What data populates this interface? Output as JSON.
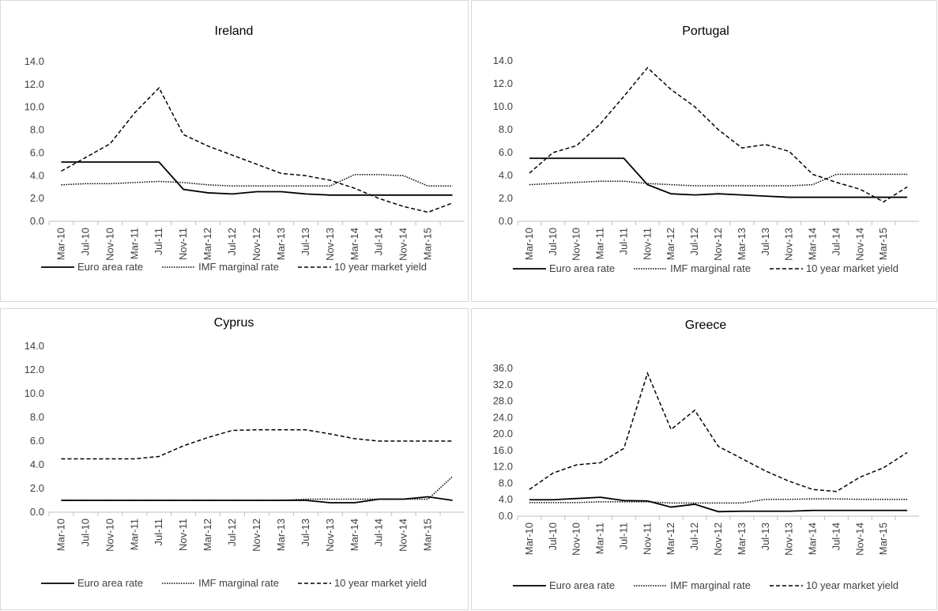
{
  "chart_data": [
    {
      "type": "line",
      "title": "Ireland",
      "categories": [
        "Mar-10",
        "Jul-10",
        "Nov-10",
        "Mar-11",
        "Jul-11",
        "Nov-11",
        "Mar-12",
        "Jul-12",
        "Nov-12",
        "Mar-13",
        "Jul-13",
        "Nov-13",
        "Mar-14",
        "Jul-14",
        "Nov-14",
        "Mar-15",
        null
      ],
      "ylim": [
        0,
        14
      ],
      "yticks": [
        {
          "value": 0,
          "label": "0.0"
        },
        {
          "value": 2,
          "label": "2.0"
        },
        {
          "value": 4,
          "label": "4.0"
        },
        {
          "value": 6,
          "label": "6.0"
        },
        {
          "value": 8,
          "label": "8.0"
        },
        {
          "value": 10,
          "label": "10.0"
        },
        {
          "value": 12,
          "label": "12.0"
        },
        {
          "value": 14,
          "label": "14.0"
        }
      ],
      "series": [
        {
          "name": "Euro area rate",
          "color": "#000000",
          "line_style": "solid",
          "values": [
            5.2,
            5.2,
            5.2,
            5.2,
            5.2,
            2.8,
            2.5,
            2.4,
            2.6,
            2.6,
            2.4,
            2.3,
            2.3,
            2.3,
            2.3,
            2.3,
            2.3
          ]
        },
        {
          "name": "IMF marginal rate",
          "color": "#000000",
          "line_style": "dotted",
          "values": [
            3.2,
            3.3,
            3.3,
            3.4,
            3.5,
            3.4,
            3.2,
            3.1,
            3.1,
            3.1,
            3.1,
            3.1,
            4.1,
            4.1,
            4.0,
            3.1,
            3.1
          ]
        },
        {
          "name": "10 year market yield",
          "color": "#000000",
          "line_style": "dashed",
          "values": [
            4.4,
            5.6,
            6.8,
            9.5,
            11.7,
            7.6,
            6.6,
            5.8,
            5.0,
            4.2,
            4.0,
            3.6,
            2.9,
            2.0,
            1.3,
            0.8,
            1.6
          ]
        }
      ]
    },
    {
      "type": "line",
      "title": "Portugal",
      "categories": [
        "Mar-10",
        "Jul-10",
        "Nov-10",
        "Mar-11",
        "Jul-11",
        "Nov-11",
        "Mar-12",
        "Jul-12",
        "Nov-12",
        "Mar-13",
        "Jul-13",
        "Nov-13",
        "Mar-14",
        "Jul-14",
        "Nov-14",
        "Mar-15",
        null
      ],
      "ylim": [
        0,
        14
      ],
      "yticks": [
        {
          "value": 0,
          "label": "0.0"
        },
        {
          "value": 2,
          "label": "2.0"
        },
        {
          "value": 4,
          "label": "4.0"
        },
        {
          "value": 6,
          "label": "6.0"
        },
        {
          "value": 8,
          "label": "8.0"
        },
        {
          "value": 10,
          "label": "10.0"
        },
        {
          "value": 12,
          "label": "12.0"
        },
        {
          "value": 14,
          "label": "14.0"
        }
      ],
      "series": [
        {
          "name": "Euro area rate",
          "color": "#000000",
          "line_style": "solid",
          "values": [
            5.5,
            5.5,
            5.5,
            5.5,
            5.5,
            3.2,
            2.4,
            2.3,
            2.4,
            2.3,
            2.2,
            2.1,
            2.1,
            2.1,
            2.1,
            2.1,
            2.1
          ]
        },
        {
          "name": "IMF marginal rate",
          "color": "#000000",
          "line_style": "dotted",
          "values": [
            3.2,
            3.3,
            3.4,
            3.5,
            3.5,
            3.3,
            3.2,
            3.1,
            3.1,
            3.1,
            3.1,
            3.1,
            3.2,
            4.1,
            4.1,
            4.1,
            4.1
          ]
        },
        {
          "name": "10 year market yield",
          "color": "#000000",
          "line_style": "dashed",
          "values": [
            4.2,
            6.0,
            6.6,
            8.5,
            10.9,
            13.4,
            11.5,
            10.0,
            8.0,
            6.4,
            6.7,
            6.1,
            4.1,
            3.4,
            2.8,
            1.7,
            3.0
          ]
        }
      ]
    },
    {
      "type": "line",
      "title": "Cyprus",
      "categories": [
        "Mar-10",
        "Jul-10",
        "Nov-10",
        "Mar-11",
        "Jul-11",
        "Nov-11",
        "Mar-12",
        "Jul-12",
        "Nov-12",
        "Mar-13",
        "Jul-13",
        "Nov-13",
        "Mar-14",
        "Jul-14",
        "Nov-14",
        "Mar-15",
        null
      ],
      "ylim": [
        0,
        14
      ],
      "yticks": [
        {
          "value": 0,
          "label": "0.0"
        },
        {
          "value": 2,
          "label": "2.0"
        },
        {
          "value": 4,
          "label": "4.0"
        },
        {
          "value": 6,
          "label": "6.0"
        },
        {
          "value": 8,
          "label": "8.0"
        },
        {
          "value": 10,
          "label": "10.0"
        },
        {
          "value": 12,
          "label": "12.0"
        },
        {
          "value": 14,
          "label": "14.0"
        }
      ],
      "series": [
        {
          "name": "Euro area rate",
          "color": "#000000",
          "line_style": "solid",
          "values": [
            1.0,
            1.0,
            1.0,
            1.0,
            1.0,
            1.0,
            1.0,
            1.0,
            1.0,
            1.0,
            1.0,
            0.8,
            0.8,
            1.1,
            1.1,
            1.3,
            1.0
          ]
        },
        {
          "name": "IMF marginal rate",
          "color": "#000000",
          "line_style": "dotted",
          "values": [
            1.0,
            1.0,
            1.0,
            1.0,
            1.0,
            1.0,
            1.0,
            1.0,
            1.0,
            1.0,
            1.1,
            1.1,
            1.1,
            1.1,
            1.1,
            1.1,
            3.0
          ]
        },
        {
          "name": "10 year market yield",
          "color": "#000000",
          "line_style": "dashed",
          "values": [
            4.5,
            4.5,
            4.5,
            4.5,
            4.7,
            5.6,
            6.3,
            6.9,
            6.95,
            6.95,
            6.95,
            6.6,
            6.2,
            6.0,
            6.0,
            6.0,
            6.0
          ]
        }
      ]
    },
    {
      "type": "line",
      "title": "Greece",
      "categories": [
        "Mar-10",
        "Jul-10",
        "Nov-10",
        "Mar-11",
        "Jul-11",
        "Nov-11",
        "Mar-12",
        "Jul-12",
        "Nov-12",
        "Mar-13",
        "Jul-13",
        "Nov-13",
        "Mar-14",
        "Jul-14",
        "Nov-14",
        "Mar-15",
        null
      ],
      "ylim": [
        0,
        36
      ],
      "yticks": [
        {
          "value": 0,
          "label": "0.0"
        },
        {
          "value": 4,
          "label": "4.0"
        },
        {
          "value": 8,
          "label": "8.0"
        },
        {
          "value": 12,
          "label": "12.0"
        },
        {
          "value": 16,
          "label": "16.0"
        },
        {
          "value": 20,
          "label": "20.0"
        },
        {
          "value": 24,
          "label": "24.0"
        },
        {
          "value": 28,
          "label": "28.0"
        },
        {
          "value": 32,
          "label": "32.0"
        },
        {
          "value": 36,
          "label": "36.0"
        }
      ],
      "series": [
        {
          "name": "Euro area rate",
          "color": "#000000",
          "line_style": "solid",
          "values": [
            4.0,
            4.0,
            4.3,
            4.6,
            3.8,
            3.7,
            2.2,
            2.9,
            1.1,
            1.2,
            1.2,
            1.2,
            1.4,
            1.4,
            1.4,
            1.4,
            1.4
          ]
        },
        {
          "name": "IMF marginal rate",
          "color": "#000000",
          "line_style": "dotted",
          "values": [
            3.3,
            3.3,
            3.3,
            3.5,
            3.5,
            3.5,
            3.2,
            3.2,
            3.2,
            3.2,
            4.1,
            4.1,
            4.2,
            4.2,
            4.1,
            4.1,
            4.1
          ]
        },
        {
          "name": "10 year market yield",
          "color": "#000000",
          "line_style": "dashed",
          "values": [
            6.5,
            10.5,
            12.5,
            13.0,
            16.5,
            34.8,
            21.1,
            25.8,
            17.0,
            14.0,
            11.0,
            8.5,
            6.5,
            6.0,
            9.5,
            11.8,
            15.5
          ]
        }
      ]
    }
  ]
}
